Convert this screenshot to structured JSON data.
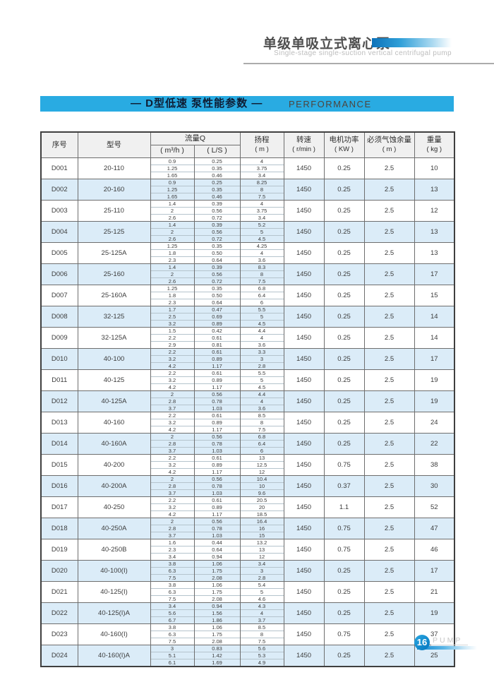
{
  "masthead": {
    "title_cn": "单级单吸立式离心泵",
    "title_en": "Single-stage single-suction vertical centrifugal pump"
  },
  "banner": {
    "title": "— D型低速 泵性能参数 —",
    "subtitle": "PERFORMANCE",
    "color": "#29abe2"
  },
  "footer": {
    "page_number": "16",
    "brand": "PUMP"
  },
  "colors": {
    "banner_cyan": "#29abe2",
    "row_blue": "#dbecf8",
    "header_gray": "#f0f0f0",
    "accent_blue": "#0b7fc5"
  },
  "table": {
    "headers": {
      "no": "序号",
      "model": "型号",
      "flow": "流量Q",
      "flow_m3h": "( m³/h )",
      "flow_ls": "( L/S )",
      "head": "扬程",
      "head_unit": "( m )",
      "speed": "转速",
      "speed_unit": "( r/min )",
      "power": "电机功率",
      "power_unit": "( KW )",
      "npsh": "必须气蚀余量",
      "npsh_unit": "( m )",
      "weight": "重量",
      "weight_unit": "( kg )"
    },
    "rows": [
      {
        "no": "D001",
        "model": "20-110",
        "flow_m3h": [
          "0.9",
          "1.25",
          "1.65"
        ],
        "flow_ls": [
          "0.25",
          "0.35",
          "0.46"
        ],
        "head": [
          "4",
          "3.75",
          "3.4"
        ],
        "speed": "1450",
        "power": "0.25",
        "npsh": "2.5",
        "weight": "10"
      },
      {
        "no": "D002",
        "model": "20-160",
        "flow_m3h": [
          "0.9",
          "1.25",
          "1.65"
        ],
        "flow_ls": [
          "0.25",
          "0.35",
          "0.46"
        ],
        "head": [
          "8.25",
          "8",
          "7.5"
        ],
        "speed": "1450",
        "power": "0.25",
        "npsh": "2.5",
        "weight": "13"
      },
      {
        "no": "D003",
        "model": "25-110",
        "flow_m3h": [
          "1.4",
          "2",
          "2.6"
        ],
        "flow_ls": [
          "0.39",
          "0.56",
          "0.72"
        ],
        "head": [
          "4",
          "3.75",
          "3.4"
        ],
        "speed": "1450",
        "power": "0.25",
        "npsh": "2.5",
        "weight": "12"
      },
      {
        "no": "D004",
        "model": "25-125",
        "flow_m3h": [
          "1.4",
          "2",
          "2.6"
        ],
        "flow_ls": [
          "0.39",
          "0.56",
          "0.72"
        ],
        "head": [
          "5.2",
          "5",
          "4.5"
        ],
        "speed": "1450",
        "power": "0.25",
        "npsh": "2.5",
        "weight": "13"
      },
      {
        "no": "D005",
        "model": "25-125A",
        "flow_m3h": [
          "1.25",
          "1.8",
          "2.3"
        ],
        "flow_ls": [
          "0.35",
          "0.50",
          "0.64"
        ],
        "head": [
          "4.25",
          "4",
          "3.6"
        ],
        "speed": "1450",
        "power": "0.25",
        "npsh": "2.5",
        "weight": "13"
      },
      {
        "no": "D006",
        "model": "25-160",
        "flow_m3h": [
          "1.4",
          "2",
          "2.6"
        ],
        "flow_ls": [
          "0.39",
          "0.56",
          "0.72"
        ],
        "head": [
          "8.3",
          "8",
          "7.5"
        ],
        "speed": "1450",
        "power": "0.25",
        "npsh": "2.5",
        "weight": "17"
      },
      {
        "no": "D007",
        "model": "25-160A",
        "flow_m3h": [
          "1.25",
          "1.8",
          "2.3"
        ],
        "flow_ls": [
          "0.35",
          "0.50",
          "0.64"
        ],
        "head": [
          "6.8",
          "6.4",
          "6"
        ],
        "speed": "1450",
        "power": "0.25",
        "npsh": "2.5",
        "weight": "15"
      },
      {
        "no": "D008",
        "model": "32-125",
        "flow_m3h": [
          "1.7",
          "2.5",
          "3.2"
        ],
        "flow_ls": [
          "0.47",
          "0.69",
          "0.89"
        ],
        "head": [
          "5.5",
          "5",
          "4.5"
        ],
        "speed": "1450",
        "power": "0.25",
        "npsh": "2.5",
        "weight": "14"
      },
      {
        "no": "D009",
        "model": "32-125A",
        "flow_m3h": [
          "1.5",
          "2.2",
          "2.9"
        ],
        "flow_ls": [
          "0.42",
          "0.61",
          "0.81"
        ],
        "head": [
          "4.4",
          "4",
          "3.6"
        ],
        "speed": "1450",
        "power": "0.25",
        "npsh": "2.5",
        "weight": "14"
      },
      {
        "no": "D010",
        "model": "40-100",
        "flow_m3h": [
          "2.2",
          "3.2",
          "4.2"
        ],
        "flow_ls": [
          "0.61",
          "0.89",
          "1.17"
        ],
        "head": [
          "3.3",
          "3",
          "2.8"
        ],
        "speed": "1450",
        "power": "0.25",
        "npsh": "2.5",
        "weight": "17"
      },
      {
        "no": "D011",
        "model": "40-125",
        "flow_m3h": [
          "2.2",
          "3.2",
          "4.2"
        ],
        "flow_ls": [
          "0.61",
          "0.89",
          "1.17"
        ],
        "head": [
          "5.5",
          "5",
          "4.5"
        ],
        "speed": "1450",
        "power": "0.25",
        "npsh": "2.5",
        "weight": "19"
      },
      {
        "no": "D012",
        "model": "40-125A",
        "flow_m3h": [
          "2",
          "2.8",
          "3.7"
        ],
        "flow_ls": [
          "0.56",
          "0.78",
          "1.03"
        ],
        "head": [
          "4.4",
          "4",
          "3.6"
        ],
        "speed": "1450",
        "power": "0.25",
        "npsh": "2.5",
        "weight": "19"
      },
      {
        "no": "D013",
        "model": "40-160",
        "flow_m3h": [
          "2.2",
          "3.2",
          "4.2"
        ],
        "flow_ls": [
          "0.61",
          "0.89",
          "1.17"
        ],
        "head": [
          "8.5",
          "8",
          "7.5"
        ],
        "speed": "1450",
        "power": "0.25",
        "npsh": "2.5",
        "weight": "24"
      },
      {
        "no": "D014",
        "model": "40-160A",
        "flow_m3h": [
          "2",
          "2.8",
          "3.7"
        ],
        "flow_ls": [
          "0.56",
          "0.78",
          "1.03"
        ],
        "head": [
          "6.8",
          "6.4",
          "6"
        ],
        "speed": "1450",
        "power": "0.25",
        "npsh": "2.5",
        "weight": "22"
      },
      {
        "no": "D015",
        "model": "40-200",
        "flow_m3h": [
          "2.2",
          "3.2",
          "4.2"
        ],
        "flow_ls": [
          "0.61",
          "0.89",
          "1.17"
        ],
        "head": [
          "13",
          "12.5",
          "12"
        ],
        "speed": "1450",
        "power": "0.75",
        "npsh": "2.5",
        "weight": "38"
      },
      {
        "no": "D016",
        "model": "40-200A",
        "flow_m3h": [
          "2",
          "2.8",
          "3.7"
        ],
        "flow_ls": [
          "0.56",
          "0.78",
          "1.03"
        ],
        "head": [
          "10.4",
          "10",
          "9.6"
        ],
        "speed": "1450",
        "power": "0.37",
        "npsh": "2.5",
        "weight": "30"
      },
      {
        "no": "D017",
        "model": "40-250",
        "flow_m3h": [
          "2.2",
          "3.2",
          "4.2"
        ],
        "flow_ls": [
          "0.61",
          "0.89",
          "1.17"
        ],
        "head": [
          "20.5",
          "20",
          "18.5"
        ],
        "speed": "1450",
        "power": "1.1",
        "npsh": "2.5",
        "weight": "52"
      },
      {
        "no": "D018",
        "model": "40-250A",
        "flow_m3h": [
          "2",
          "2.8",
          "3.7"
        ],
        "flow_ls": [
          "0.56",
          "0.78",
          "1.03"
        ],
        "head": [
          "16.4",
          "16",
          "15"
        ],
        "speed": "1450",
        "power": "0.75",
        "npsh": "2.5",
        "weight": "47"
      },
      {
        "no": "D019",
        "model": "40-250B",
        "flow_m3h": [
          "1.6",
          "2.3",
          "3.4"
        ],
        "flow_ls": [
          "0.44",
          "0.64",
          "0.94"
        ],
        "head": [
          "13.2",
          "13",
          "12"
        ],
        "speed": "1450",
        "power": "0.75",
        "npsh": "2.5",
        "weight": "46"
      },
      {
        "no": "D020",
        "model": "40-100(I)",
        "flow_m3h": [
          "3.8",
          "6.3",
          "7.5"
        ],
        "flow_ls": [
          "1.06",
          "1.75",
          "2.08"
        ],
        "head": [
          "3.4",
          "3",
          "2.8"
        ],
        "speed": "1450",
        "power": "0.25",
        "npsh": "2.5",
        "weight": "17"
      },
      {
        "no": "D021",
        "model": "40-125(I)",
        "flow_m3h": [
          "3.8",
          "6.3",
          "7.5"
        ],
        "flow_ls": [
          "1.06",
          "1.75",
          "2.08"
        ],
        "head": [
          "5.4",
          "5",
          "4.6"
        ],
        "speed": "1450",
        "power": "0.25",
        "npsh": "2.5",
        "weight": "21"
      },
      {
        "no": "D022",
        "model": "40-125(I)A",
        "flow_m3h": [
          "3.4",
          "5.6",
          "6.7"
        ],
        "flow_ls": [
          "0.94",
          "1.56",
          "1.86"
        ],
        "head": [
          "4.3",
          "4",
          "3.7"
        ],
        "speed": "1450",
        "power": "0.25",
        "npsh": "2.5",
        "weight": "19"
      },
      {
        "no": "D023",
        "model": "40-160(I)",
        "flow_m3h": [
          "3.8",
          "6.3",
          "7.5"
        ],
        "flow_ls": [
          "1.06",
          "1.75",
          "2.08"
        ],
        "head": [
          "8.5",
          "8",
          "7.5"
        ],
        "speed": "1450",
        "power": "0.75",
        "npsh": "2.5",
        "weight": "37"
      },
      {
        "no": "D024",
        "model": "40-160(I)A",
        "flow_m3h": [
          "3",
          "5.1",
          "6.1"
        ],
        "flow_ls": [
          "0.83",
          "1.42",
          "1.69"
        ],
        "head": [
          "5.6",
          "5.3",
          "4.9"
        ],
        "speed": "1450",
        "power": "0.25",
        "npsh": "2.5",
        "weight": "25"
      }
    ]
  }
}
